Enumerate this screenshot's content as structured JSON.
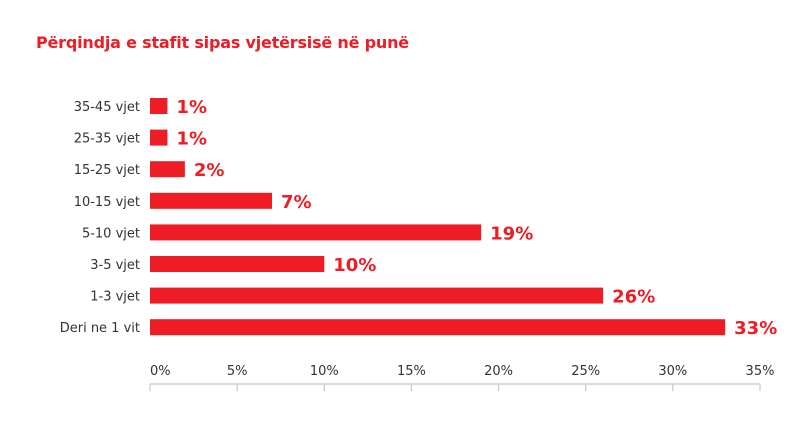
{
  "chart_data": {
    "type": "bar",
    "orientation": "horizontal",
    "title": "Përqindja e stafit sipas vjetërsisë në punë",
    "categories": [
      "35-45 vjet",
      "25-35 vjet",
      "15-25 vjet",
      "10-15 vjet",
      "5-10 vjet",
      "3-5 vjet",
      "1-3 vjet",
      "Deri ne 1 vit"
    ],
    "values": [
      1,
      1,
      2,
      7,
      19,
      10,
      26,
      33
    ],
    "data_labels": [
      "1%",
      "1%",
      "2%",
      "7%",
      "19%",
      "10%",
      "26%",
      "33%"
    ],
    "xlim": [
      0,
      35
    ],
    "xticks": [
      0,
      5,
      10,
      15,
      20,
      25,
      30,
      35
    ],
    "xtick_labels": [
      "0%",
      "5%",
      "10%",
      "15%",
      "20%",
      "25%",
      "30%",
      "35%"
    ],
    "xlabel": "",
    "ylabel": "",
    "grid": false,
    "legend": "none",
    "bar_color": "#ee1c25",
    "label_color": "#ee1c25",
    "axis_color": "#c8c8c8"
  }
}
